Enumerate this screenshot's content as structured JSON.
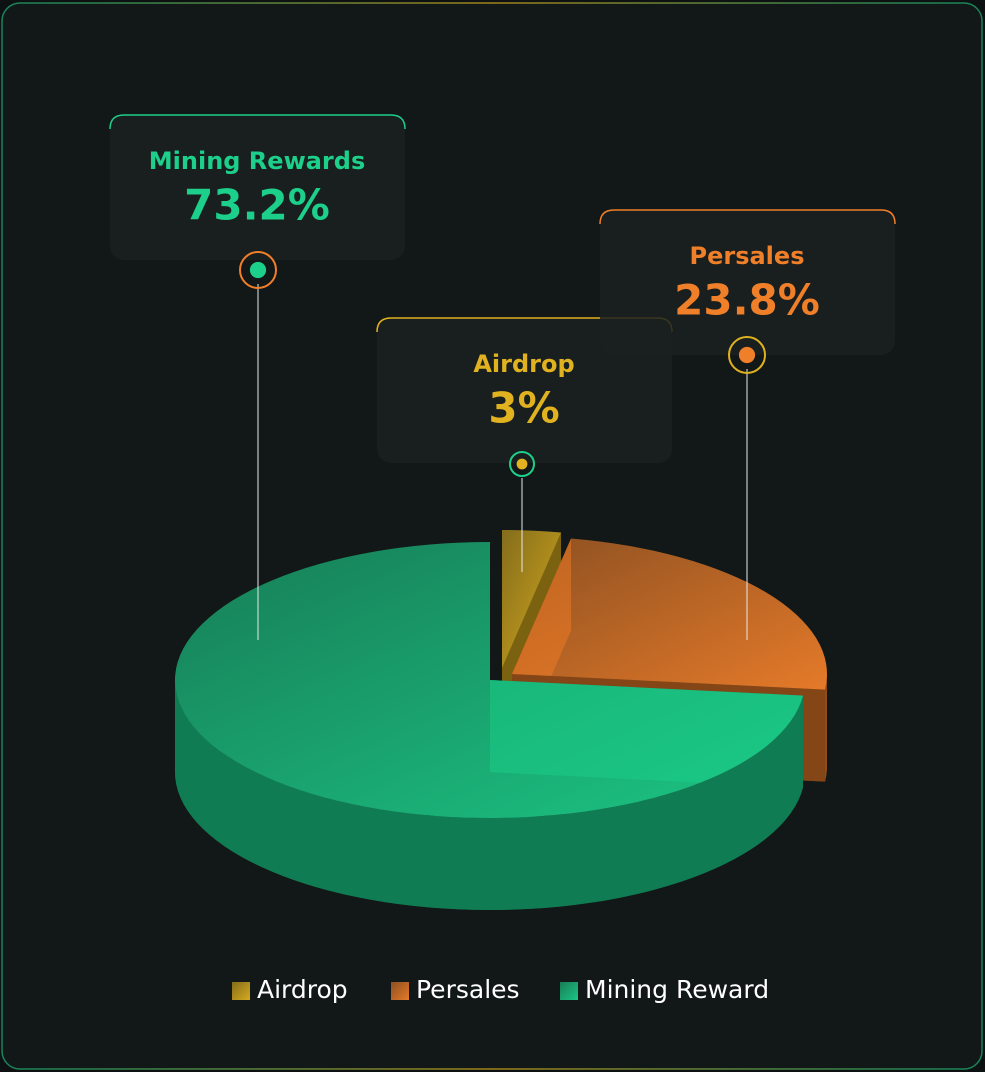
{
  "chart_data": {
    "type": "pie",
    "categories": [
      "Airdrop",
      "Persales",
      "Mining Reward"
    ],
    "callout_labels": [
      "Airdrop",
      "Persales",
      "Mining Rewards"
    ],
    "values": [
      3,
      23.8,
      73.2
    ],
    "value_labels": [
      "3%",
      "23.8%",
      "73.2%"
    ],
    "colors": [
      "#e0b21f",
      "#f07f2a",
      "#1ccf8a"
    ],
    "legend": "bottom"
  }
}
